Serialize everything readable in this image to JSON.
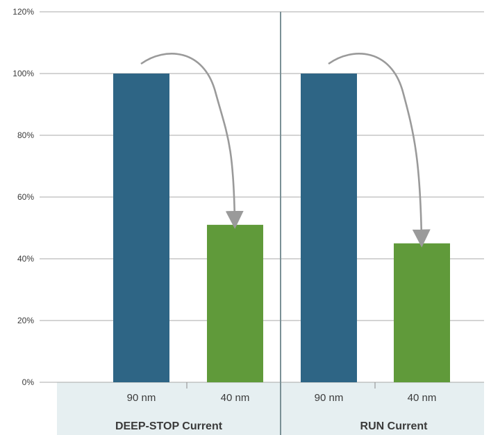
{
  "chart_data": {
    "type": "bar",
    "ylim": [
      0,
      120
    ],
    "yticks": [
      "0%",
      "20%",
      "40%",
      "60%",
      "80%",
      "100%",
      "120%"
    ],
    "grid": true,
    "groups": [
      {
        "name": "DEEP-STOP Current",
        "categories": [
          "90 nm",
          "40 nm"
        ],
        "values": [
          100,
          51
        ],
        "colors": [
          "#2e6585",
          "#609a3a"
        ]
      },
      {
        "name": "RUN Current",
        "categories": [
          "90 nm",
          "40 nm"
        ],
        "values": [
          100,
          45
        ],
        "colors": [
          "#2e6585",
          "#609a3a"
        ]
      }
    ],
    "arrows": "90 nm to 40 nm"
  },
  "colors": {
    "band": "#e6eff1",
    "grid": "#a8a8a8",
    "divider": "#7a9096",
    "arrow": "#9a9a9a"
  }
}
